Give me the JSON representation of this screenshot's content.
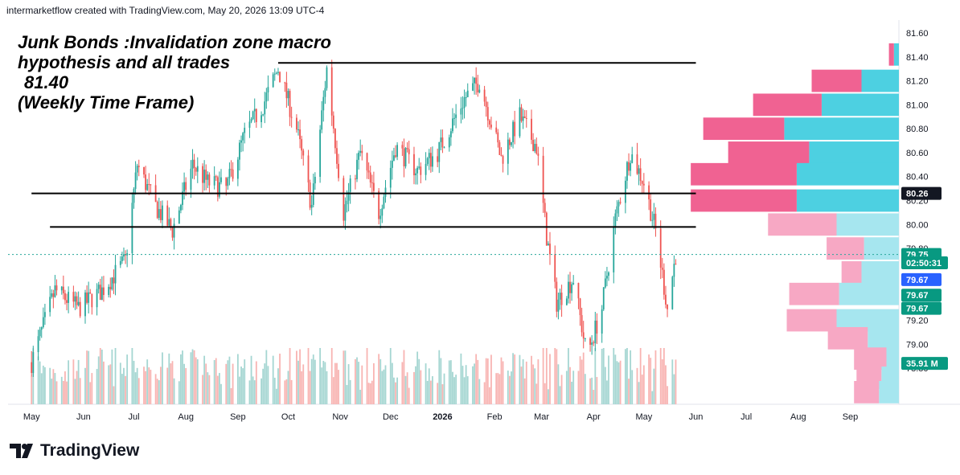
{
  "attribution": "intermarketflow created with TradingView.com, May 20, 2026 13:09 UTC-4",
  "annotation": {
    "line1": "Junk Bonds :Invalidation zone macro",
    "line2": "hypothesis and all trades",
    "line3": "81.40",
    "line4": "(Weekly Time Frame)"
  },
  "brand": {
    "name": "TradingView",
    "logo_icon": "tradingview-logo-icon"
  },
  "colors": {
    "up": "#26a69a",
    "down": "#ef5350",
    "profile_up": "#4dd0e1",
    "profile_down": "#f06292",
    "profile_up_light": "#a6e6ef",
    "profile_down_light": "#f7a8c4",
    "vol_up": "#a5d6d2",
    "vol_down": "#f8b4b2",
    "tag_green": "#089981",
    "tag_blue": "#2962ff",
    "tag_black": "#131722"
  },
  "chart_data": {
    "type": "candlestick",
    "ylim": [
      78.7,
      81.62
    ],
    "y_ticks": [
      "81.60",
      "81.40",
      "81.20",
      "81.00",
      "80.80",
      "80.60",
      "80.40",
      "80.20",
      "80.00",
      "79.80",
      "79.20",
      "79.00",
      "78.80"
    ],
    "x_ticks": [
      "May",
      "Jun",
      "Jul",
      "Aug",
      "Sep",
      "Oct",
      "Nov",
      "Dec",
      "2026",
      "Feb",
      "Mar",
      "Apr",
      "May",
      "Jun",
      "Jul",
      "Aug",
      "Sep"
    ],
    "price_path": [
      {
        "date": "2025-05-01",
        "close": 78.85
      },
      {
        "date": "2025-05-15",
        "close": 79.45
      },
      {
        "date": "2025-05-29",
        "close": 79.3
      },
      {
        "date": "2025-06-12",
        "close": 79.45
      },
      {
        "date": "2025-06-26",
        "close": 79.7
      },
      {
        "date": "2025-07-03",
        "close": 80.5
      },
      {
        "date": "2025-07-14",
        "close": 80.15
      },
      {
        "date": "2025-07-24",
        "close": 79.95
      },
      {
        "date": "2025-08-05",
        "close": 80.5
      },
      {
        "date": "2025-08-14",
        "close": 80.35
      },
      {
        "date": "2025-08-25",
        "close": 80.3
      },
      {
        "date": "2025-09-05",
        "close": 80.75
      },
      {
        "date": "2025-09-16",
        "close": 81.0
      },
      {
        "date": "2025-09-25",
        "close": 81.3
      },
      {
        "date": "2025-10-06",
        "close": 80.8
      },
      {
        "date": "2025-10-15",
        "close": 80.15
      },
      {
        "date": "2025-10-24",
        "close": 81.3
      },
      {
        "date": "2025-11-03",
        "close": 80.1
      },
      {
        "date": "2025-11-13",
        "close": 80.6
      },
      {
        "date": "2025-11-24",
        "close": 80.1
      },
      {
        "date": "2025-12-04",
        "close": 80.65
      },
      {
        "date": "2025-12-17",
        "close": 80.45
      },
      {
        "date": "2025-12-29",
        "close": 80.6
      },
      {
        "date": "2026-01-14",
        "close": 81.05
      },
      {
        "date": "2026-01-23",
        "close": 81.2
      },
      {
        "date": "2026-02-05",
        "close": 80.55
      },
      {
        "date": "2026-02-16",
        "close": 80.9
      },
      {
        "date": "2026-02-26",
        "close": 80.65
      },
      {
        "date": "2026-03-04",
        "close": 79.9
      },
      {
        "date": "2026-03-10",
        "close": 79.35
      },
      {
        "date": "2026-03-20",
        "close": 79.55
      },
      {
        "date": "2026-03-28",
        "close": 78.9
      },
      {
        "date": "2026-04-06",
        "close": 79.3
      },
      {
        "date": "2026-04-14",
        "close": 80.05
      },
      {
        "date": "2026-04-23",
        "close": 80.6
      },
      {
        "date": "2026-05-01",
        "close": 80.35
      },
      {
        "date": "2026-05-08",
        "close": 79.95
      },
      {
        "date": "2026-05-15",
        "close": 79.3
      },
      {
        "date": "2026-05-20",
        "close": 79.75
      }
    ],
    "horizontal_lines": [
      {
        "from": "2025-09-25",
        "to": "2026-06-01",
        "price": 81.35
      },
      {
        "from": "2025-05-01",
        "to": "2026-06-01",
        "price": 80.26
      },
      {
        "from": "2025-05-12",
        "to": "2026-06-01",
        "price": 79.98
      }
    ],
    "volume_profile": [
      {
        "price": 81.42,
        "up": 4,
        "down": 4
      },
      {
        "price": 81.2,
        "up": 30,
        "down": 40
      },
      {
        "price": 81.0,
        "up": 62,
        "down": 55
      },
      {
        "price": 80.8,
        "up": 92,
        "down": 65
      },
      {
        "price": 80.6,
        "up": 72,
        "down": 65
      },
      {
        "price": 80.42,
        "up": 82,
        "down": 85
      },
      {
        "price": 80.2,
        "up": 82,
        "down": 85
      },
      {
        "price": 80.0,
        "up": 50,
        "down": 55
      },
      {
        "price": 79.8,
        "up": 28,
        "down": 30
      },
      {
        "price": 79.6,
        "up": 30,
        "down": 16
      },
      {
        "price": 79.42,
        "up": 48,
        "down": 40
      },
      {
        "price": 79.2,
        "up": 50,
        "down": 40
      },
      {
        "price": 79.05,
        "up": 25,
        "down": 32
      },
      {
        "price": 78.88,
        "up": 10,
        "down": 26
      },
      {
        "price": 78.72,
        "up": 14,
        "down": 20
      },
      {
        "price": 78.6,
        "up": 16,
        "down": 20
      }
    ],
    "price_tags": [
      {
        "label": "80.26",
        "price": 80.26,
        "color": "black"
      },
      {
        "label": "79.75",
        "price": 79.75,
        "color": "green"
      },
      {
        "label": "02:50:31",
        "price": 79.68,
        "color": "green"
      },
      {
        "label": "79.67",
        "price": 79.54,
        "color": "blue"
      },
      {
        "label": "79.67",
        "price": 79.41,
        "color": "green"
      },
      {
        "label": "79.67",
        "price": 79.3,
        "color": "green"
      },
      {
        "label": "35.91 M",
        "price": 78.84,
        "color": "green"
      }
    ]
  }
}
